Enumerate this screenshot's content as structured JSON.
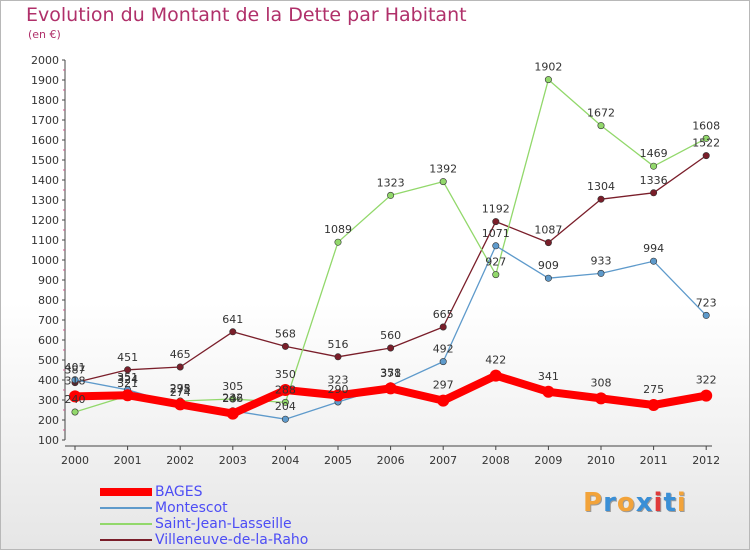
{
  "title": "Evolution du Montant de la Dette par Habitant",
  "unit": "(en €)",
  "logo": {
    "text": "Proxiti",
    "letters": [
      "P",
      "r",
      "o",
      "x",
      "i",
      "t",
      "i"
    ],
    "colors": [
      "#f2a33a",
      "#3a8fd6",
      "#f2a33a",
      "#3a8fd6",
      "#e03a3a",
      "#3a8fd6",
      "#f2a33a"
    ]
  },
  "chart_data": {
    "type": "line",
    "x": [
      "2000",
      "2001",
      "2002",
      "2003",
      "2004",
      "2005",
      "2006",
      "2007",
      "2008",
      "2009",
      "2010",
      "2011",
      "2012"
    ],
    "ylim": [
      100,
      2000
    ],
    "yticks": [
      100,
      200,
      300,
      400,
      500,
      600,
      700,
      800,
      900,
      1000,
      1100,
      1200,
      1300,
      1400,
      1500,
      1600,
      1700,
      1800,
      1900,
      2000
    ],
    "grid": false,
    "legend_position": "bottom-left",
    "series": [
      {
        "name": "BAGES",
        "color": "#ff0000",
        "values": [
          318,
          324,
          278,
          232,
          350,
          323,
          358,
          297,
          422,
          341,
          308,
          275,
          322
        ]
      },
      {
        "name": "Montescot",
        "color": "#5e9acb",
        "values": [
          401,
          351,
          274,
          246,
          204,
          290,
          371,
          492,
          1071,
          909,
          933,
          994,
          723
        ]
      },
      {
        "name": "Saint-Jean-Lasseille",
        "color": "#92d86b",
        "values": [
          240,
          321,
          295,
          305,
          288,
          1089,
          1323,
          1392,
          927,
          1902,
          1672,
          1469,
          1608
        ]
      },
      {
        "name": "Villeneuve-de-la-Raho",
        "color": "#7a1e2a",
        "values": [
          387,
          451,
          465,
          641,
          568,
          516,
          560,
          665,
          1192,
          1087,
          1304,
          1336,
          1522
        ]
      }
    ]
  }
}
